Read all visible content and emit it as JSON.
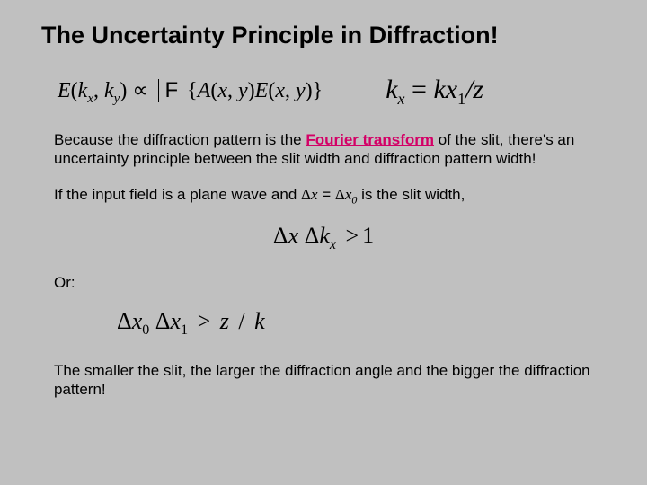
{
  "title": "The Uncertainty Principle in Diffraction!",
  "equation_row": {
    "lhs_E": "E",
    "lhs_kx": "k",
    "lhs_kx_sub": "x",
    "lhs_ky": "k",
    "lhs_ky_sub": "y",
    "propto": "∝",
    "fourier_symbol": "F",
    "lbrace": "{",
    "A": "A",
    "x": "x",
    "y": "y",
    "E2": "E",
    "rbrace": "}",
    "rhs_k": "k",
    "rhs_sub_x": "x",
    "rhs_eq": " = ",
    "rhs_kx": "kx",
    "rhs_one": "1",
    "rhs_slash_z": "/z"
  },
  "para1_before": "Because the diffraction pattern is the ",
  "fourier_label": "Fourier transform",
  "para1_after": " of the slit, there's an uncertainty principle between the slit width and diffraction pattern width!",
  "para2_before": "If the input field is a plane wave and ",
  "para2_dx": "Δx",
  "para2_eq": " = ",
  "para2_dx0": "Δx",
  "para2_sub0": "0",
  "para2_after": " is the slit width,",
  "eq_center1": {
    "dx": "Δx",
    "space": " ",
    "dkx": "Δk",
    "sub_x": "x",
    "gt": ">",
    "one": "1"
  },
  "or_label": "Or:",
  "eq_center2": {
    "dx0": "Δx",
    "sub0": "0",
    "dx1": "Δx",
    "sub1": "1",
    "gt": ">",
    "z": "z",
    "slash": " / ",
    "k": "k"
  },
  "para3": "The smaller the slit, the larger the diffraction angle and the bigger the diffraction pattern!"
}
